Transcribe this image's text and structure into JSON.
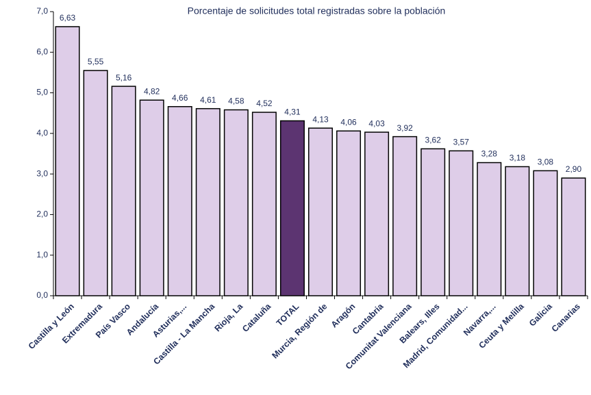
{
  "chart_data": {
    "type": "bar",
    "title": "Porcentaje de solicitudes total registradas sobre la población",
    "categories": [
      "Castilla y León",
      "Extremadura",
      "País Vasco",
      "Andalucía",
      "Asturias,...",
      "Castilla - La Mancha",
      "Rioja, La",
      "Cataluña",
      "TOTAL",
      "Murcia, Región de",
      "Aragón",
      "Cantabria",
      "Comunitat Valenciana",
      "Balears, Illes",
      "Madrid, Comunidad...",
      "Navarra,...",
      "Ceuta y Melilla",
      "Galicia",
      "Canarias"
    ],
    "values": [
      6.63,
      5.55,
      5.16,
      4.82,
      4.66,
      4.61,
      4.58,
      4.52,
      4.31,
      4.13,
      4.06,
      4.03,
      3.92,
      3.62,
      3.57,
      3.28,
      3.18,
      3.08,
      2.9
    ],
    "value_labels": [
      "6,63",
      "5,55",
      "5,16",
      "4,82",
      "4,66",
      "4,61",
      "4,58",
      "4,52",
      "4,31",
      "4,13",
      "4,06",
      "4,03",
      "3,92",
      "3,62",
      "3,57",
      "3,28",
      "3,18",
      "3,08",
      "2,90"
    ],
    "colors": [
      "#decde8",
      "#decde8",
      "#decde8",
      "#decde8",
      "#decde8",
      "#decde8",
      "#decde8",
      "#decde8",
      "#5c3471",
      "#decde8",
      "#decde8",
      "#decde8",
      "#decde8",
      "#decde8",
      "#decde8",
      "#decde8",
      "#decde8",
      "#decde8",
      "#decde8"
    ],
    "ylim": [
      0,
      7
    ],
    "yticks": [
      {
        "value": 0,
        "label": "0,0"
      },
      {
        "value": 1,
        "label": "1,0"
      },
      {
        "value": 2,
        "label": "2,0"
      },
      {
        "value": 3,
        "label": "3,0"
      },
      {
        "value": 4,
        "label": "4,0"
      },
      {
        "value": 5,
        "label": "5,0"
      },
      {
        "value": 6,
        "label": "6,0"
      },
      {
        "value": 7,
        "label": "7,0"
      }
    ],
    "grid": false
  }
}
